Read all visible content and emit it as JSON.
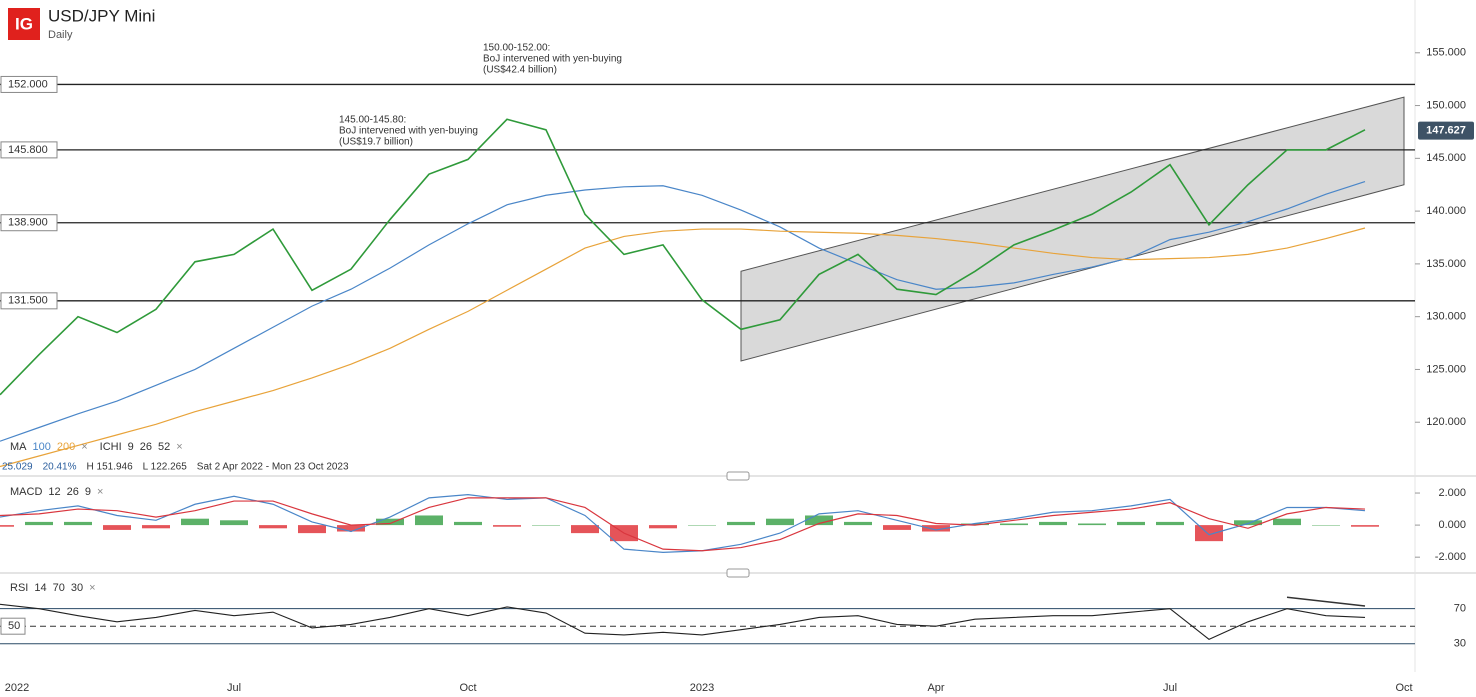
{
  "header": {
    "logo": "IG",
    "title": "USD/JPY Mini",
    "interval": "Daily"
  },
  "chart_data": [
    {
      "type": "line",
      "categories": [
        "2022",
        null,
        null,
        null,
        null,
        null,
        "Jul",
        null,
        null,
        null,
        null,
        null,
        "Oct",
        null,
        null,
        null,
        null,
        null,
        "2023",
        null,
        null,
        null,
        null,
        null,
        "Apr",
        null,
        null,
        null,
        null,
        null,
        "Jul",
        null,
        null,
        null,
        null,
        null,
        "Oct"
      ],
      "values": [
        122.6,
        126.4,
        130,
        128.5,
        130.7,
        135.2,
        135.9,
        138.3,
        132.5,
        134.5,
        139.2,
        143.5,
        144.9,
        148.7,
        147.7,
        139.7,
        135.9,
        136.8,
        131.6,
        128.8,
        129.7,
        134,
        135.9,
        132.6,
        132.1,
        134.3,
        136.8,
        138.2,
        139.7,
        141.8,
        144.4,
        138.7,
        142.5,
        145.8,
        145.8,
        147.7,
        null
      ],
      "color": "#2f9a3a",
      "series": [
        {
          "name": "100",
          "color": "#4a86c8",
          "values": [
            118.2,
            119.5,
            120.8,
            122,
            123.5,
            125,
            127,
            129,
            131,
            132.6,
            134.6,
            136.8,
            138.8,
            140.6,
            141.5,
            142,
            142.3,
            142.4,
            141.5,
            140.1,
            138.5,
            136.5,
            135,
            133.5,
            132.6,
            132.8,
            133.2,
            134,
            134.7,
            135.6,
            137.3,
            138,
            139,
            140.2,
            141.6,
            142.8,
            null
          ]
        },
        {
          "name": "200",
          "color": "#e8a33a",
          "values": [
            115.8,
            116.8,
            117.8,
            118.8,
            119.8,
            121,
            122,
            123,
            124.2,
            125.5,
            127,
            128.8,
            130.5,
            132.5,
            134.5,
            136.5,
            137.6,
            138.1,
            138.3,
            138.3,
            138.1,
            138,
            137.9,
            137.7,
            137.4,
            137,
            136.5,
            136,
            135.6,
            135.4,
            135.5,
            135.6,
            135.9,
            136.5,
            137.4,
            138.4,
            null
          ]
        }
      ],
      "ma_label": "MA",
      "ichimoku_label": "ICHI",
      "ichimoku_params": [
        "9",
        "26",
        "52"
      ],
      "close_icon": "×",
      "stats": [
        "25.029",
        "20.41%",
        "H 151.946",
        "L 122.265",
        "Sat 2 Apr 2022 - Mon 23 Oct 2023"
      ],
      "ylim": [
        115,
        160
      ],
      "yticks": [
        {
          "value": 155,
          "label": "155.000"
        },
        {
          "value": 150,
          "label": "150.000"
        },
        {
          "value": 145,
          "label": "145.000"
        },
        {
          "value": 140,
          "label": "140.000"
        },
        {
          "value": 135,
          "label": "135.000"
        },
        {
          "value": 130,
          "label": "130.000"
        },
        {
          "value": 125,
          "label": "125.000"
        },
        {
          "value": 120,
          "label": "120.000"
        }
      ],
      "levels": [
        {
          "value": 152,
          "label": "152.000"
        },
        {
          "value": 145.8,
          "label": "145.800"
        },
        {
          "value": 138.9,
          "label": "138.900"
        },
        {
          "value": 131.5,
          "label": "131.500"
        }
      ],
      "last_price": 147.627,
      "channel": {
        "x": [
          19,
          36
        ],
        "upper": [
          134.3,
          150.8
        ],
        "lower": [
          125.8,
          142.5
        ]
      },
      "annotations": [
        [
          "150.00-152.00:",
          "BoJ intervened with yen-buying",
          "(US$42.4 billion)"
        ],
        [
          "145.00-145.80:",
          "BoJ intervened with yen-buying",
          "(US$19.7 billion)"
        ]
      ]
    },
    {
      "type": "macd",
      "label": "MACD",
      "params": [
        "12",
        "26",
        "9"
      ],
      "close_icon": "×",
      "series": [
        {
          "name": "MACD",
          "color": "#4a86c8",
          "values": [
            0.5,
            0.9,
            1.2,
            0.6,
            0.3,
            1.3,
            1.8,
            1.3,
            0.2,
            -0.4,
            0.5,
            1.7,
            1.9,
            1.6,
            1.7,
            0.6,
            -1.5,
            -1.7,
            -1.6,
            -1.2,
            -0.5,
            0.7,
            0.9,
            0.3,
            -0.3,
            0.1,
            0.4,
            0.8,
            0.9,
            1.2,
            1.6,
            -0.6,
            0.1,
            1.1,
            1.1,
            0.9,
            null
          ]
        },
        {
          "name": "Signal",
          "color": "#d9363e",
          "values": [
            0.6,
            0.7,
            1.0,
            0.9,
            0.5,
            0.9,
            1.5,
            1.5,
            0.7,
            0.0,
            0.1,
            1.1,
            1.7,
            1.7,
            1.7,
            1.1,
            -0.5,
            -1.5,
            -1.6,
            -1.4,
            -0.9,
            0.1,
            0.7,
            0.6,
            0.1,
            0.0,
            0.3,
            0.6,
            0.8,
            1.0,
            1.4,
            0.4,
            -0.2,
            0.7,
            1.1,
            1.0,
            null
          ]
        }
      ],
      "histogram": [
        -0.1,
        0.2,
        0.2,
        -0.3,
        -0.2,
        0.4,
        0.3,
        -0.2,
        -0.5,
        -0.4,
        0.4,
        0.6,
        0.2,
        -0.1,
        0.0,
        -0.5,
        -1.0,
        -0.2,
        0.0,
        0.2,
        0.4,
        0.6,
        0.2,
        -0.3,
        -0.4,
        0.1,
        0.1,
        0.2,
        0.1,
        0.2,
        0.2,
        -1.0,
        0.3,
        0.4,
        0.0,
        -0.1,
        null
      ],
      "up_color": "#3fa34d",
      "down_color": "#e0363c",
      "ylim": [
        -2.8,
        3
      ],
      "yticks": [
        {
          "value": 2,
          "label": "2.000"
        },
        {
          "value": 0,
          "label": "0.000"
        },
        {
          "value": -2,
          "label": "-2.000"
        }
      ]
    },
    {
      "type": "line",
      "label": "RSI",
      "params": [
        "14",
        "70",
        "30"
      ],
      "close_icon": "×",
      "values": [
        75,
        70,
        62,
        55,
        60,
        68,
        62,
        66,
        48,
        52,
        60,
        70,
        62,
        72,
        65,
        42,
        40,
        43,
        40,
        46,
        52,
        60,
        62,
        52,
        50,
        58,
        60,
        62,
        62,
        66,
        70,
        35,
        55,
        70,
        62,
        60,
        null
      ],
      "color": "#222222",
      "ylim": [
        0,
        105
      ],
      "yticks": [
        70,
        30
      ],
      "midline": 50,
      "divergence": {
        "x": [
          33,
          35
        ],
        "values": [
          83,
          73
        ]
      }
    }
  ]
}
